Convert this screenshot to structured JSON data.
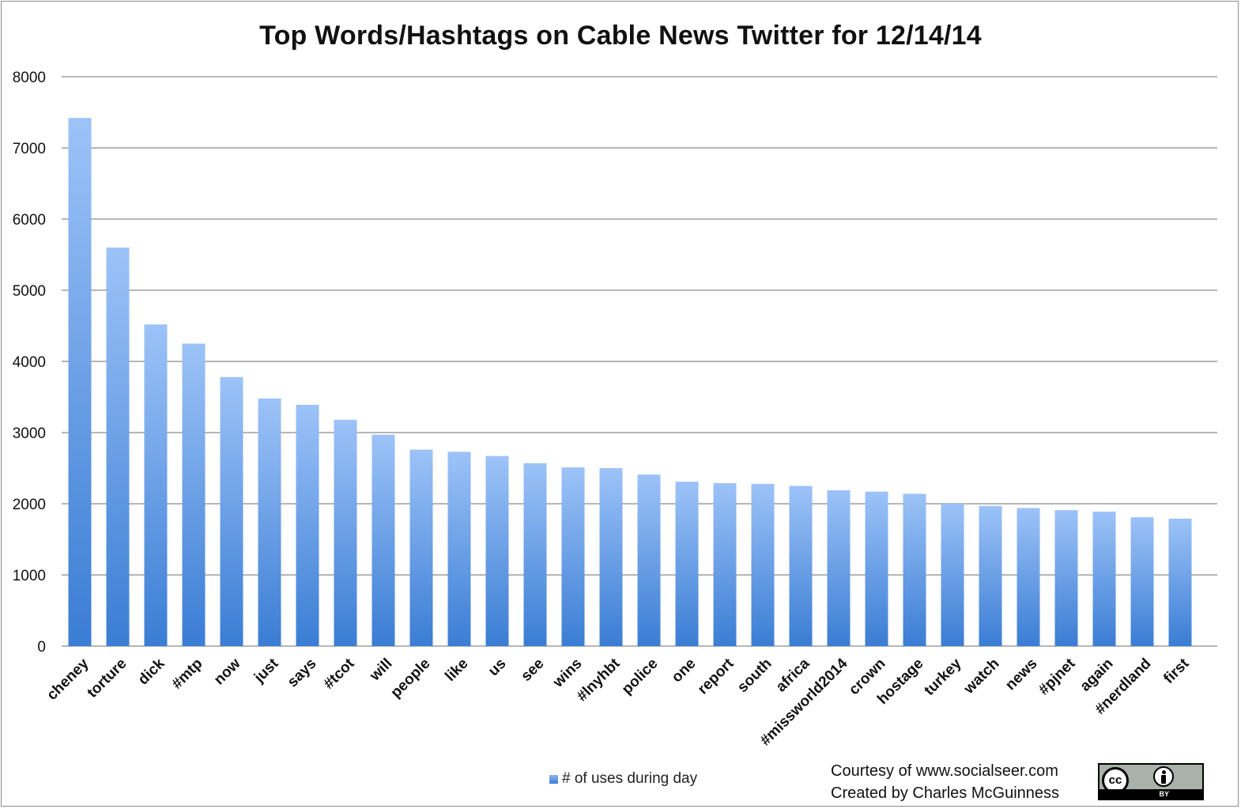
{
  "chart_data": {
    "type": "bar",
    "title": "Top Words/Hashtags on Cable News Twitter for 12/14/14",
    "xlabel": "",
    "ylabel": "",
    "ylim": [
      0,
      8000
    ],
    "yticks": [
      0,
      1000,
      2000,
      3000,
      4000,
      5000,
      6000,
      7000,
      8000
    ],
    "grid": true,
    "legend_position": "bottom",
    "categories": [
      "cheney",
      "torture",
      "dick",
      "#mtp",
      "now",
      "just",
      "says",
      "#tcot",
      "will",
      "people",
      "like",
      "us",
      "see",
      "wins",
      "#lnyhbt",
      "police",
      "one",
      "report",
      "south",
      "africa",
      "#missworld2014",
      "crown",
      "hostage",
      "turkey",
      "watch",
      "news",
      "#pjnet",
      "again",
      "#nerdland",
      "first"
    ],
    "series": [
      {
        "name": "# of uses during day",
        "values": [
          7420,
          5600,
          4520,
          4250,
          3780,
          3480,
          3390,
          3180,
          2970,
          2760,
          2730,
          2670,
          2570,
          2510,
          2500,
          2410,
          2310,
          2290,
          2280,
          2250,
          2190,
          2170,
          2140,
          2000,
          1970,
          1940,
          1910,
          1890,
          1810,
          1790
        ]
      }
    ],
    "colors": {
      "bar_top": "#9dc3f8",
      "bar_bottom": "#3a7dd4",
      "grid": "#8a8a8a"
    }
  },
  "credits": {
    "line1": "Courtesy of www.socialseer.com",
    "line2": "Created by Charles McGuinness"
  },
  "license_badge": {
    "logo_text": "cc",
    "label": "BY",
    "icon": "creative-commons-by-icon"
  }
}
